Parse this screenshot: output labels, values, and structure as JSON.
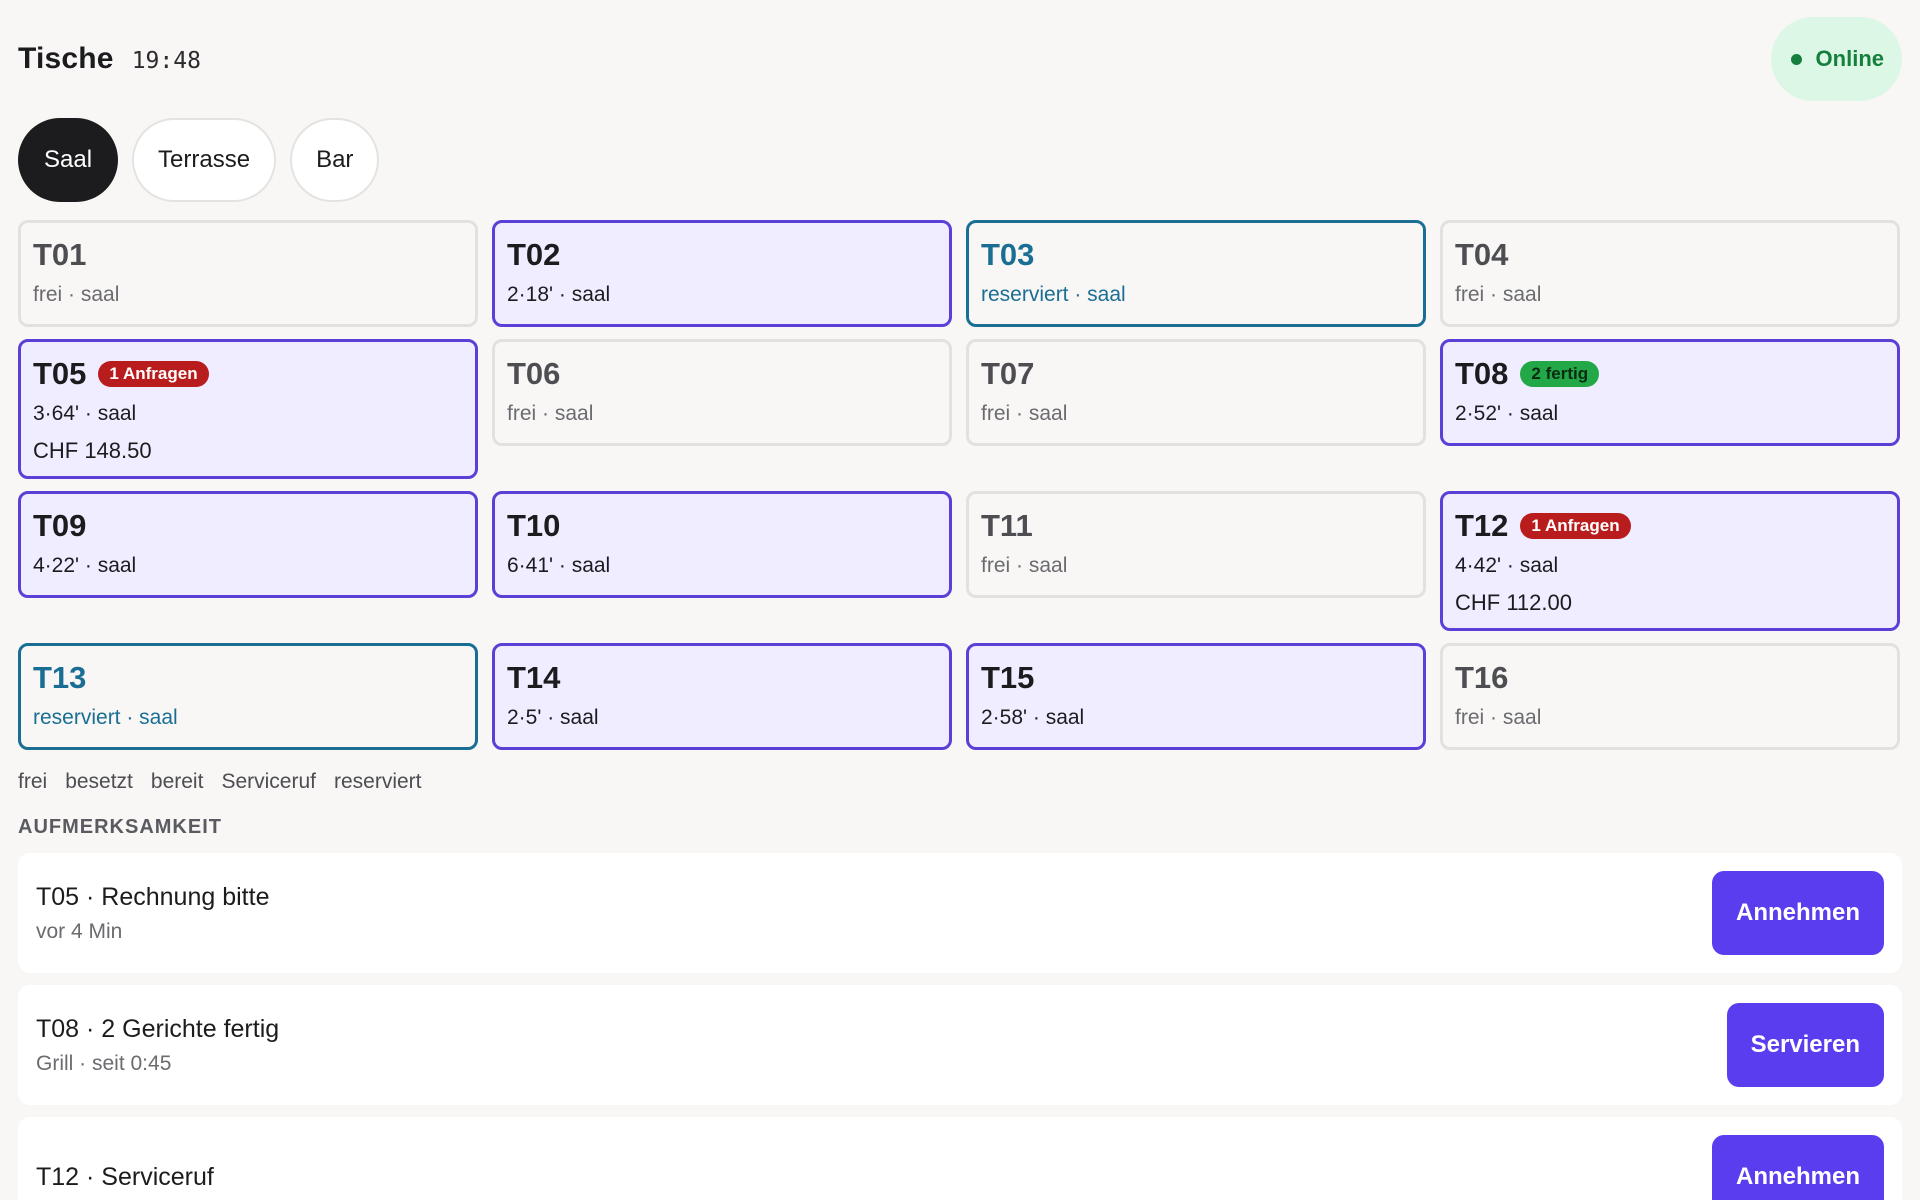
{
  "header": {
    "title": "Tische",
    "time": "19:48",
    "status": "Online",
    "status_color": "#15803d"
  },
  "tabs": [
    {
      "label": "Saal",
      "active": true
    },
    {
      "label": "Terrasse",
      "active": false
    },
    {
      "label": "Bar",
      "active": false
    }
  ],
  "tables": [
    {
      "id": "T01",
      "state": "free",
      "sub": "frei · saal",
      "badge": "",
      "badge_color": "",
      "amount": ""
    },
    {
      "id": "T02",
      "state": "occupied",
      "sub": "2·18' · saal",
      "badge": "",
      "badge_color": "",
      "amount": ""
    },
    {
      "id": "T03",
      "state": "reserved",
      "sub": "reserviert · saal",
      "badge": "",
      "badge_color": "",
      "amount": ""
    },
    {
      "id": "T04",
      "state": "free",
      "sub": "frei · saal",
      "badge": "",
      "badge_color": "",
      "amount": ""
    },
    {
      "id": "T05",
      "state": "occupied",
      "sub": "3·64' · saal",
      "badge": "1 Anfragen",
      "badge_color": "red",
      "amount": "CHF 148.50"
    },
    {
      "id": "T06",
      "state": "free",
      "sub": "frei · saal",
      "badge": "",
      "badge_color": "",
      "amount": ""
    },
    {
      "id": "T07",
      "state": "free",
      "sub": "frei · saal",
      "badge": "",
      "badge_color": "",
      "amount": ""
    },
    {
      "id": "T08",
      "state": "occupied",
      "sub": "2·52' · saal",
      "badge": "2 fertig",
      "badge_color": "green",
      "amount": ""
    },
    {
      "id": "T09",
      "state": "occupied",
      "sub": "4·22' · saal",
      "badge": "",
      "badge_color": "",
      "amount": ""
    },
    {
      "id": "T10",
      "state": "occupied",
      "sub": "6·41' · saal",
      "badge": "",
      "badge_color": "",
      "amount": ""
    },
    {
      "id": "T11",
      "state": "free",
      "sub": "frei · saal",
      "badge": "",
      "badge_color": "",
      "amount": ""
    },
    {
      "id": "T12",
      "state": "occupied",
      "sub": "4·42' · saal",
      "badge": "1 Anfragen",
      "badge_color": "red",
      "amount": "CHF 112.00"
    },
    {
      "id": "T13",
      "state": "reserved",
      "sub": "reserviert · saal",
      "badge": "",
      "badge_color": "",
      "amount": ""
    },
    {
      "id": "T14",
      "state": "occupied",
      "sub": "2·5' · saal",
      "badge": "",
      "badge_color": "",
      "amount": ""
    },
    {
      "id": "T15",
      "state": "occupied",
      "sub": "2·58' · saal",
      "badge": "",
      "badge_color": "",
      "amount": ""
    },
    {
      "id": "T16",
      "state": "free",
      "sub": "frei · saal",
      "badge": "",
      "badge_color": "",
      "amount": ""
    }
  ],
  "legend": [
    "frei",
    "besetzt",
    "bereit",
    "Serviceruf",
    "reserviert"
  ],
  "attention": {
    "title": "AUFMERKSAMKEIT",
    "items": [
      {
        "title": "T05 · Rechnung bitte",
        "meta": "vor 4 Min",
        "action": "Annehmen"
      },
      {
        "title": "T08 · 2 Gerichte fertig",
        "meta": "Grill · seit 0:45",
        "action": "Servieren"
      },
      {
        "title": "T12 · Serviceruf",
        "meta": "",
        "action": "Annehmen"
      }
    ]
  },
  "colors": {
    "accent": "#5b3df0",
    "occupied_border": "#5b3fd6",
    "reserved": "#1a6e94",
    "badge_red": "#b91c1c",
    "badge_green": "#22a846"
  }
}
